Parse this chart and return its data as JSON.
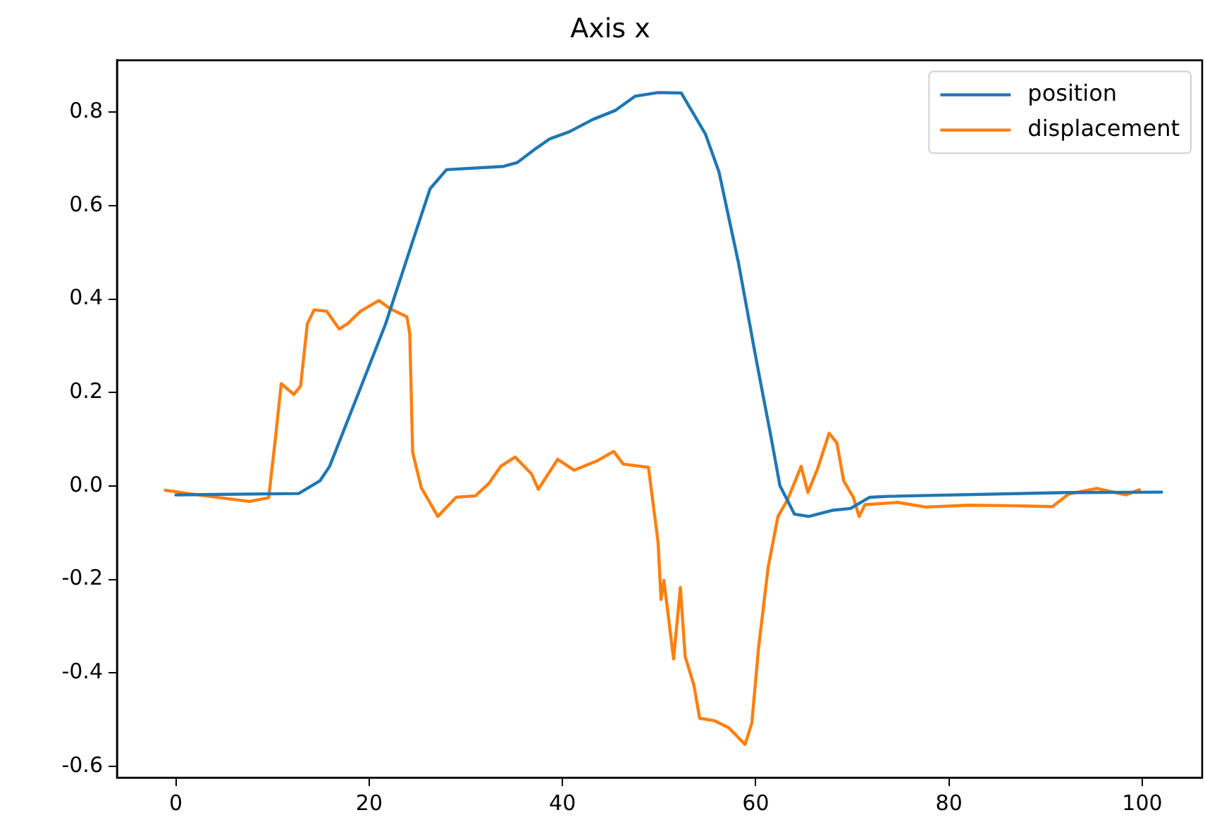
{
  "chart_data": {
    "type": "line",
    "title": "Axis x",
    "xlim": [
      -6.1,
      106.2
    ],
    "xticks": [
      0,
      20,
      40,
      60,
      80,
      100
    ],
    "ylim": [
      -0.624,
      0.911
    ],
    "yticks": [
      -0.6,
      -0.4,
      -0.2,
      {
        "value": 0,
        "label": "0.0"
      },
      0.2,
      0.4,
      0.6,
      0.8
    ],
    "grid": false,
    "legend": "top right",
    "marker": "none",
    "line_style": "solid",
    "series": [
      {
        "name": "position",
        "color": "#1f77b4",
        "x": [
          0,
          12.7,
          14.9,
          15.9,
          18.8,
          21.7,
          24.6,
          26.3,
          28.0,
          33.9,
          35.3,
          37.3,
          38.7,
          40.7,
          43.1,
          45.5,
          47.5,
          49.9,
          52.3,
          54.8,
          56.2,
          58.2,
          60.1,
          61.6,
          62.5,
          64.0,
          65.5,
          67.9,
          69.8,
          71.8,
          73.7,
          92.2,
          102
        ],
        "values": [
          -0.019,
          -0.016,
          0.011,
          0.042,
          0.194,
          0.347,
          0.53,
          0.636,
          0.677,
          0.684,
          0.692,
          0.723,
          0.743,
          0.758,
          0.784,
          0.804,
          0.834,
          0.842,
          0.841,
          0.753,
          0.672,
          0.479,
          0.265,
          0.103,
          0.001,
          -0.06,
          -0.065,
          -0.052,
          -0.048,
          -0.024,
          -0.022,
          -0.014,
          -0.013
        ]
      },
      {
        "name": "displacement",
        "color": "#ff7f0e",
        "x": [
          -1.1,
          2.3,
          7.6,
          9.6,
          10.3,
          10.9,
          12.2,
          12.9,
          13.6,
          14.3,
          15.6,
          16.9,
          17.8,
          19.1,
          21.0,
          22.2,
          23.9,
          24.2,
          24.5,
          25.4,
          27.1,
          29.0,
          31.0,
          32.4,
          33.6,
          35.1,
          36.8,
          37.5,
          39.5,
          41.2,
          43.6,
          45.3,
          46.3,
          48.9,
          49.9,
          50.2,
          50.5,
          51.5,
          52.2,
          52.7,
          53.6,
          54.2,
          55.7,
          57.2,
          58.9,
          59.6,
          60.3,
          61.3,
          62.3,
          63.3,
          64.7,
          65.4,
          66.4,
          67.6,
          68.4,
          69.1,
          70.1,
          70.7,
          71.3,
          74.7,
          77.6,
          82.0,
          86.4,
          90.7,
          92.4,
          95.3,
          98.3,
          99.7
        ],
        "values": [
          -0.009,
          -0.019,
          -0.033,
          -0.025,
          0.103,
          0.219,
          0.196,
          0.214,
          0.347,
          0.377,
          0.374,
          0.336,
          0.348,
          0.374,
          0.397,
          0.379,
          0.362,
          0.326,
          0.072,
          -0.004,
          -0.065,
          -0.024,
          -0.021,
          0.006,
          0.042,
          0.062,
          0.026,
          -0.007,
          0.057,
          0.034,
          0.054,
          0.074,
          0.047,
          0.04,
          -0.121,
          -0.243,
          -0.202,
          -0.37,
          -0.217,
          -0.365,
          -0.426,
          -0.497,
          -0.502,
          -0.517,
          -0.553,
          -0.507,
          -0.345,
          -0.172,
          -0.065,
          -0.029,
          0.042,
          -0.014,
          0.037,
          0.113,
          0.092,
          0.011,
          -0.024,
          -0.065,
          -0.04,
          -0.035,
          -0.045,
          -0.041,
          -0.042,
          -0.044,
          -0.017,
          -0.005,
          -0.019,
          -0.008
        ]
      }
    ]
  }
}
